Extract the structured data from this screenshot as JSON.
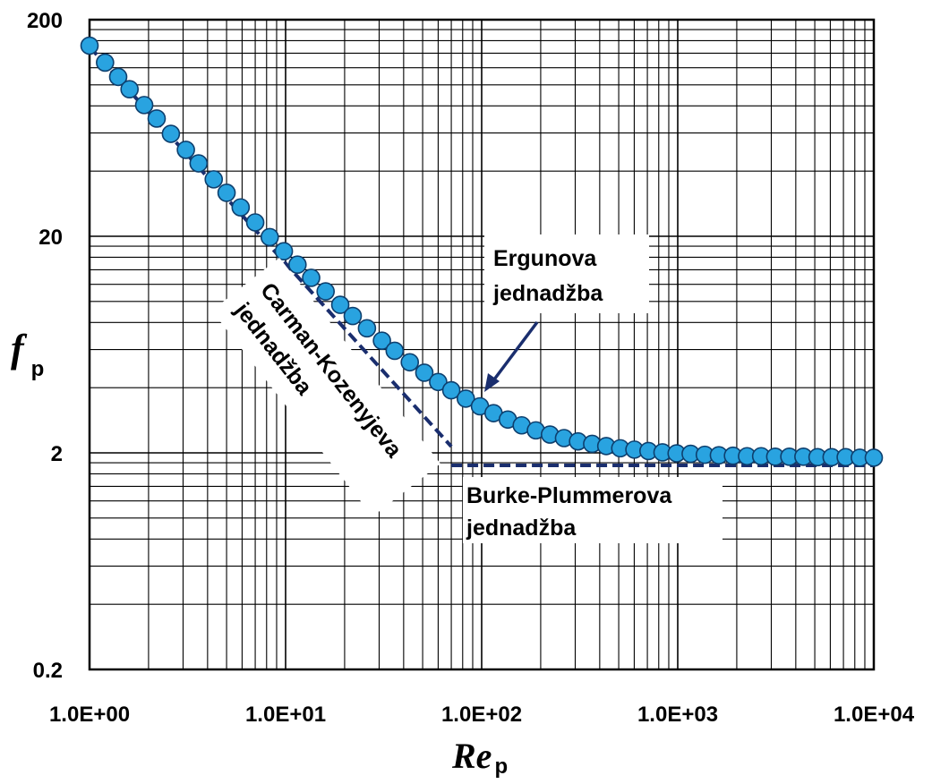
{
  "chart_data": {
    "type": "scatter",
    "x_scale": "log",
    "y_scale": "log",
    "xlim": [
      1,
      10000
    ],
    "ylim": [
      0.2,
      200
    ],
    "grid": true,
    "x_tick_labels": [
      "1.0E+00",
      "1.0E+01",
      "1.0E+02",
      "1.0E+03",
      "1.0E+04"
    ],
    "x_tick_values": [
      1,
      10,
      100,
      1000,
      10000
    ],
    "y_tick_labels": [
      "0.2",
      "2",
      "20",
      "200"
    ],
    "y_tick_values": [
      0.2,
      2,
      20,
      200
    ],
    "xlabel": {
      "main": "Re",
      "sub": "p"
    },
    "ylabel": {
      "main": "f",
      "sub": "p"
    },
    "series": [
      {
        "name": "Ergunova jednadžba",
        "style": "markers",
        "color": "#29a3e0",
        "x": [
          1.0,
          1.2,
          1.4,
          1.6,
          1.9,
          2.2,
          2.6,
          3.1,
          3.6,
          4.3,
          5.0,
          5.9,
          7.0,
          8.3,
          9.8,
          11.5,
          13.5,
          16,
          19,
          22,
          26,
          31,
          36,
          43,
          51,
          60,
          70,
          83,
          98,
          115,
          136,
          160,
          189,
          223,
          263,
          310,
          366,
          432,
          509,
          601,
          709,
          836,
          987,
          1164,
          1374,
          1621,
          1913,
          2257,
          2663,
          3142,
          3708,
          4375,
          5163,
          6092,
          7188,
          8483,
          10000
        ],
        "y": [
          151.75,
          126.75,
          108.89,
          95.5,
          80.7,
          69.93,
          59.44,
          50.14,
          43.42,
          36.64,
          31.75,
          27.18,
          23.18,
          19.82,
          17.06,
          14.79,
          12.86,
          11.13,
          9.65,
          8.57,
          7.52,
          6.59,
          5.92,
          5.24,
          4.69,
          4.25,
          3.89,
          3.56,
          3.28,
          3.05,
          2.85,
          2.68,
          2.54,
          2.43,
          2.34,
          2.26,
          2.2,
          2.15,
          2.1,
          2.07,
          2.04,
          2.01,
          1.99,
          1.98,
          1.96,
          1.95,
          1.94,
          1.93,
          1.93,
          1.92,
          1.92,
          1.92,
          1.91,
          1.91,
          1.91,
          1.9,
          1.9
        ]
      },
      {
        "name": "Carman-Kozenyjeva jednadžba",
        "style": "dashed",
        "color": "#1a2e6e",
        "x": [
          1,
          70
        ],
        "y": [
          150,
          2.14
        ]
      },
      {
        "name": "Burke-Plummerova jednadžba",
        "style": "dashed",
        "color": "#1a2e6e",
        "x": [
          70,
          10000
        ],
        "y": [
          1.75,
          1.75
        ]
      }
    ],
    "annotations": [
      {
        "lines": [
          "Ergunova",
          "jednadžba"
        ],
        "target": "Ergunova jednadžba"
      },
      {
        "lines": [
          "Carman-Kozenyjeva",
          "jednadžba"
        ],
        "target": "Carman-Kozenyjeva jednadžba"
      },
      {
        "lines": [
          "Burke-Plummerova",
          "jednadžba"
        ],
        "target": "Burke-Plummerova jednadžba"
      }
    ]
  }
}
